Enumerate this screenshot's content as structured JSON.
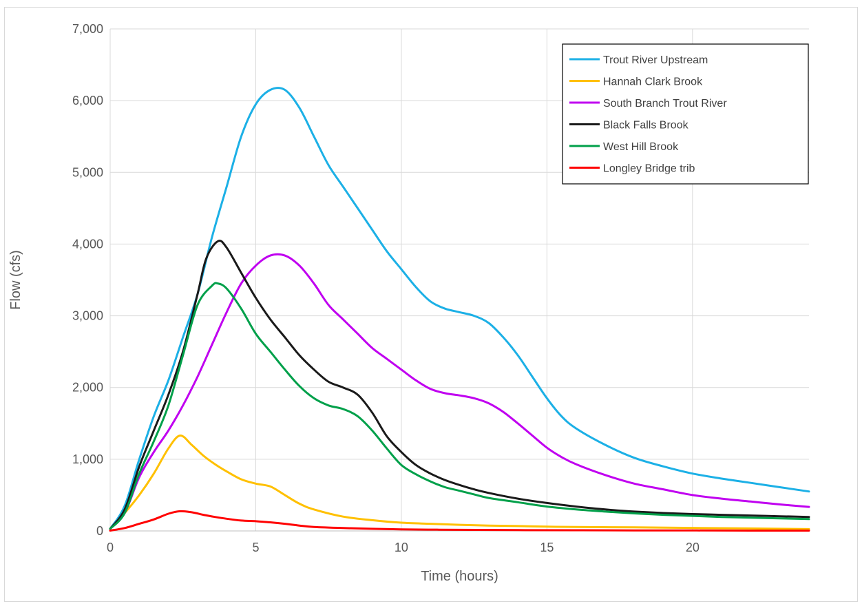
{
  "chart_data": {
    "type": "line",
    "title": "",
    "xlabel": "Time (hours)",
    "ylabel": "Flow (cfs)",
    "xlim": [
      0,
      24
    ],
    "ylim": [
      0,
      7000
    ],
    "x_ticks": [
      0,
      5,
      10,
      15,
      20
    ],
    "x_tick_labels": [
      "0",
      "5",
      "10",
      "15",
      "20"
    ],
    "y_ticks": [
      0,
      1000,
      2000,
      3000,
      4000,
      5000,
      6000,
      7000
    ],
    "y_tick_labels": [
      "0",
      "1,000",
      "2,000",
      "3,000",
      "4,000",
      "5,000",
      "6,000",
      "7,000"
    ],
    "grid": true,
    "legend_position": "top-right",
    "series": [
      {
        "name": "Trout River Upstream",
        "color": "#1cb0e6",
        "points": [
          [
            0,
            30
          ],
          [
            0.5,
            350
          ],
          [
            1,
            1000
          ],
          [
            1.5,
            1600
          ],
          [
            2,
            2100
          ],
          [
            2.5,
            2700
          ],
          [
            3,
            3300
          ],
          [
            3.5,
            4100
          ],
          [
            4,
            4800
          ],
          [
            4.5,
            5500
          ],
          [
            5,
            5950
          ],
          [
            5.5,
            6150
          ],
          [
            6,
            6150
          ],
          [
            6.5,
            5900
          ],
          [
            7,
            5500
          ],
          [
            7.5,
            5100
          ],
          [
            8,
            4800
          ],
          [
            8.5,
            4500
          ],
          [
            9,
            4200
          ],
          [
            9.5,
            3900
          ],
          [
            10,
            3650
          ],
          [
            10.5,
            3400
          ],
          [
            11,
            3200
          ],
          [
            11.5,
            3100
          ],
          [
            12,
            3050
          ],
          [
            12.5,
            3000
          ],
          [
            13,
            2900
          ],
          [
            13.5,
            2700
          ],
          [
            14,
            2450
          ],
          [
            14.5,
            2150
          ],
          [
            15,
            1850
          ],
          [
            15.5,
            1600
          ],
          [
            16,
            1430
          ],
          [
            17,
            1200
          ],
          [
            18,
            1020
          ],
          [
            19,
            900
          ],
          [
            20,
            800
          ],
          [
            21,
            730
          ],
          [
            22,
            670
          ],
          [
            23,
            610
          ],
          [
            24,
            550
          ]
        ]
      },
      {
        "name": "Hannah Clark Brook",
        "color": "#ffc000",
        "points": [
          [
            0,
            30
          ],
          [
            0.5,
            250
          ],
          [
            1,
            500
          ],
          [
            1.5,
            800
          ],
          [
            2,
            1150
          ],
          [
            2.4,
            1330
          ],
          [
            2.8,
            1200
          ],
          [
            3.2,
            1050
          ],
          [
            3.6,
            930
          ],
          [
            4,
            830
          ],
          [
            4.5,
            720
          ],
          [
            5,
            660
          ],
          [
            5.5,
            620
          ],
          [
            6,
            500
          ],
          [
            6.5,
            380
          ],
          [
            7,
            300
          ],
          [
            8,
            200
          ],
          [
            9,
            150
          ],
          [
            10,
            115
          ],
          [
            11,
            100
          ],
          [
            12,
            85
          ],
          [
            13,
            75
          ],
          [
            14,
            68
          ],
          [
            15,
            60
          ],
          [
            16,
            55
          ],
          [
            18,
            50
          ],
          [
            20,
            42
          ],
          [
            22,
            35
          ],
          [
            24,
            25
          ]
        ]
      },
      {
        "name": "South Branch Trout River",
        "color": "#c000f0",
        "points": [
          [
            0,
            30
          ],
          [
            0.5,
            250
          ],
          [
            1,
            750
          ],
          [
            1.5,
            1100
          ],
          [
            2,
            1400
          ],
          [
            2.5,
            1750
          ],
          [
            3,
            2150
          ],
          [
            3.5,
            2600
          ],
          [
            4,
            3050
          ],
          [
            4.5,
            3450
          ],
          [
            5,
            3700
          ],
          [
            5.5,
            3840
          ],
          [
            6,
            3840
          ],
          [
            6.5,
            3700
          ],
          [
            7,
            3450
          ],
          [
            7.5,
            3150
          ],
          [
            8,
            2950
          ],
          [
            8.5,
            2750
          ],
          [
            9,
            2550
          ],
          [
            9.5,
            2400
          ],
          [
            10,
            2250
          ],
          [
            10.5,
            2100
          ],
          [
            11,
            1980
          ],
          [
            11.5,
            1920
          ],
          [
            12,
            1890
          ],
          [
            12.5,
            1850
          ],
          [
            13,
            1780
          ],
          [
            13.5,
            1660
          ],
          [
            14,
            1500
          ],
          [
            14.5,
            1330
          ],
          [
            15,
            1160
          ],
          [
            15.5,
            1030
          ],
          [
            16,
            930
          ],
          [
            17,
            780
          ],
          [
            18,
            660
          ],
          [
            19,
            580
          ],
          [
            20,
            500
          ],
          [
            21,
            450
          ],
          [
            22,
            410
          ],
          [
            23,
            370
          ],
          [
            24,
            335
          ]
        ]
      },
      {
        "name": "Black Falls Brook",
        "color": "#1a1a1a",
        "points": [
          [
            0,
            30
          ],
          [
            0.5,
            300
          ],
          [
            1,
            900
          ],
          [
            1.5,
            1400
          ],
          [
            2,
            1900
          ],
          [
            2.5,
            2500
          ],
          [
            3,
            3300
          ],
          [
            3.3,
            3800
          ],
          [
            3.7,
            4040
          ],
          [
            4,
            3950
          ],
          [
            4.5,
            3600
          ],
          [
            5,
            3250
          ],
          [
            5.5,
            2950
          ],
          [
            6,
            2700
          ],
          [
            6.5,
            2450
          ],
          [
            7,
            2250
          ],
          [
            7.5,
            2080
          ],
          [
            8,
            2000
          ],
          [
            8.5,
            1900
          ],
          [
            9,
            1650
          ],
          [
            9.5,
            1320
          ],
          [
            10,
            1100
          ],
          [
            10.5,
            920
          ],
          [
            11,
            800
          ],
          [
            11.5,
            710
          ],
          [
            12,
            640
          ],
          [
            12.5,
            580
          ],
          [
            13,
            530
          ],
          [
            14,
            450
          ],
          [
            15,
            390
          ],
          [
            16,
            340
          ],
          [
            17,
            300
          ],
          [
            18,
            270
          ],
          [
            19,
            250
          ],
          [
            20,
            235
          ],
          [
            21,
            225
          ],
          [
            22,
            215
          ],
          [
            23,
            205
          ],
          [
            24,
            195
          ]
        ]
      },
      {
        "name": "West Hill Brook",
        "color": "#00a04a",
        "points": [
          [
            0,
            30
          ],
          [
            0.5,
            250
          ],
          [
            1,
            800
          ],
          [
            1.5,
            1250
          ],
          [
            2,
            1750
          ],
          [
            2.5,
            2450
          ],
          [
            3,
            3150
          ],
          [
            3.5,
            3420
          ],
          [
            3.7,
            3450
          ],
          [
            4,
            3380
          ],
          [
            4.5,
            3100
          ],
          [
            5,
            2750
          ],
          [
            5.5,
            2500
          ],
          [
            6,
            2250
          ],
          [
            6.5,
            2020
          ],
          [
            7,
            1850
          ],
          [
            7.5,
            1750
          ],
          [
            8,
            1700
          ],
          [
            8.5,
            1600
          ],
          [
            9,
            1400
          ],
          [
            9.5,
            1150
          ],
          [
            10,
            920
          ],
          [
            10.5,
            790
          ],
          [
            11,
            690
          ],
          [
            11.5,
            610
          ],
          [
            12,
            560
          ],
          [
            12.5,
            510
          ],
          [
            13,
            460
          ],
          [
            14,
            400
          ],
          [
            15,
            340
          ],
          [
            16,
            300
          ],
          [
            17,
            270
          ],
          [
            18,
            245
          ],
          [
            19,
            225
          ],
          [
            20,
            210
          ],
          [
            21,
            195
          ],
          [
            22,
            185
          ],
          [
            23,
            175
          ],
          [
            24,
            165
          ]
        ]
      },
      {
        "name": "Longley Bridge trib",
        "color": "#ff0000",
        "points": [
          [
            0,
            5
          ],
          [
            0.5,
            40
          ],
          [
            1,
            100
          ],
          [
            1.5,
            160
          ],
          [
            2,
            240
          ],
          [
            2.4,
            275
          ],
          [
            2.8,
            260
          ],
          [
            3.2,
            225
          ],
          [
            3.6,
            195
          ],
          [
            4,
            170
          ],
          [
            4.5,
            145
          ],
          [
            5,
            135
          ],
          [
            5.5,
            120
          ],
          [
            6,
            100
          ],
          [
            6.5,
            75
          ],
          [
            7,
            55
          ],
          [
            8,
            40
          ],
          [
            9,
            30
          ],
          [
            10,
            22
          ],
          [
            11,
            18
          ],
          [
            12,
            15
          ],
          [
            14,
            12
          ],
          [
            16,
            10
          ],
          [
            18,
            8
          ],
          [
            20,
            7
          ],
          [
            22,
            5
          ],
          [
            24,
            5
          ]
        ]
      }
    ]
  }
}
